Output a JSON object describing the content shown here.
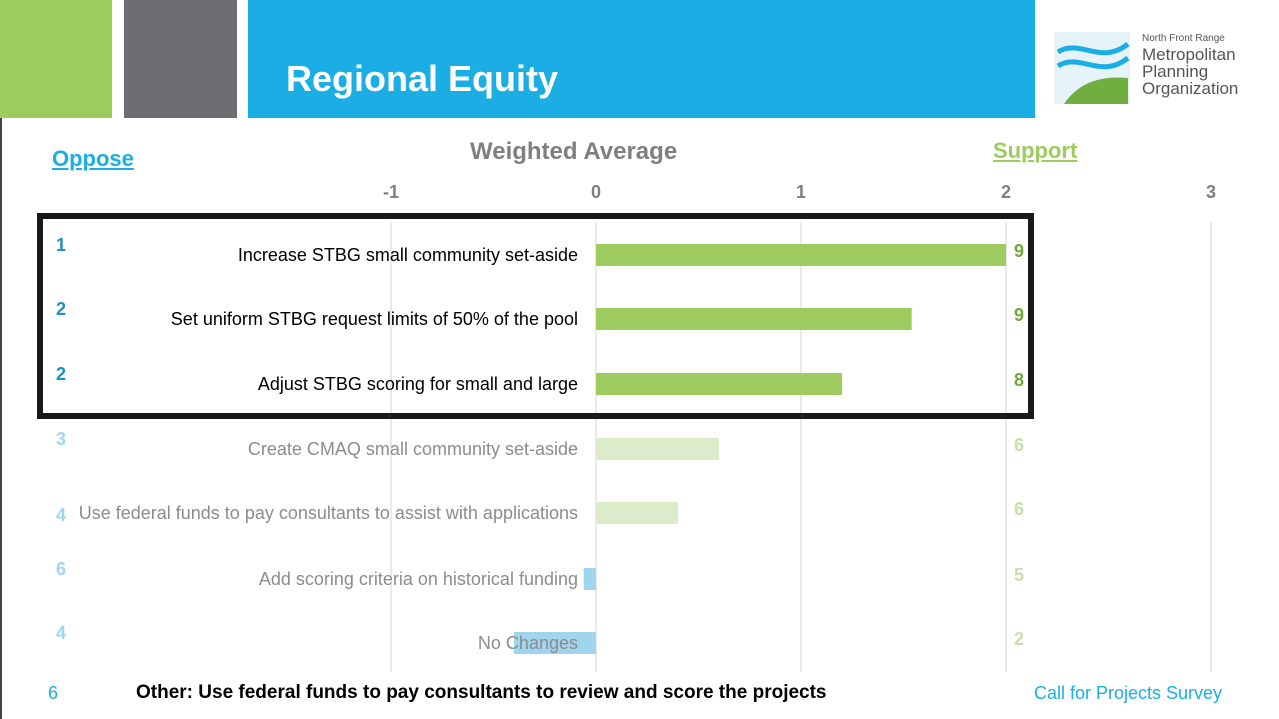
{
  "header": {
    "title": "Regional Equity",
    "logo": {
      "small": "North Front Range",
      "lines": [
        "Metropolitan",
        "Planning",
        "Organization"
      ]
    }
  },
  "chart_data": {
    "type": "bar",
    "orientation": "horizontal",
    "title": "Weighted Average",
    "left_label": "Oppose",
    "right_label": "Support",
    "categories": [
      "Increase STBG small community set-aside",
      "Set uniform STBG request limits of 50% of the pool",
      "Adjust STBG scoring for small and large",
      "Create CMAQ small community set-aside",
      "Use federal funds to pay consultants to assist with applications",
      "Add scoring criteria on historical funding",
      "No Changes"
    ],
    "values": [
      2.0,
      1.54,
      1.2,
      0.6,
      0.4,
      -0.06,
      -0.4
    ],
    "oppose_counts": [
      1,
      2,
      2,
      3,
      4,
      6,
      4
    ],
    "support_counts": [
      9,
      9,
      8,
      6,
      6,
      5,
      2
    ],
    "colors": [
      "#9dcb5e",
      "#9dcb5e",
      "#9dcb5e",
      "#dcebc9",
      "#dcebc9",
      "#9fd5ee",
      "#9fd5ee"
    ],
    "highlight_count": 3,
    "xlim": [
      -1,
      3
    ],
    "xticks": [
      -1,
      0,
      1,
      2,
      3
    ],
    "grid": true
  },
  "footer": {
    "count": "6",
    "other": "Other: Use federal funds to pay consultants to review and score the projects",
    "source": "Call for Projects Survey"
  }
}
